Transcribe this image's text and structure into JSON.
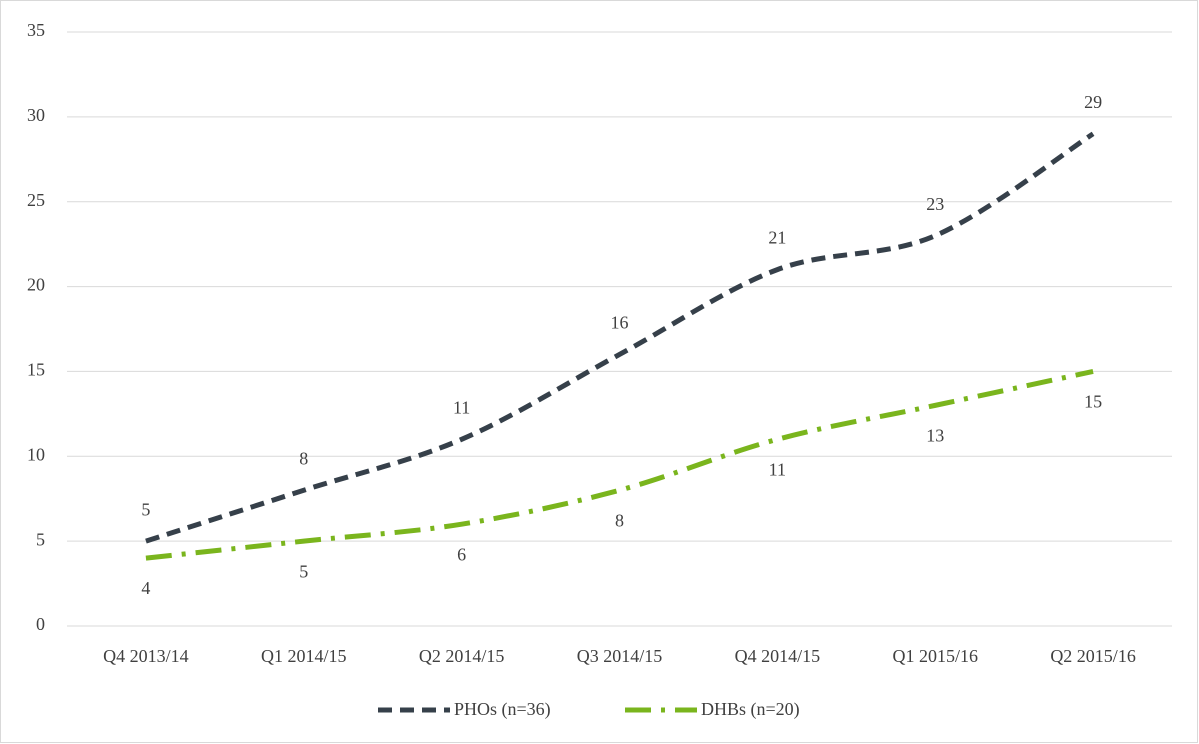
{
  "chart_data": {
    "type": "line",
    "categories": [
      "Q4 2013/14",
      "Q1 2014/15",
      "Q2 2014/15",
      "Q3 2014/15",
      "Q4 2014/15",
      "Q1 2015/16",
      "Q2 2015/16"
    ],
    "series": [
      {
        "name": "PHOs (n=36)",
        "color": "#36404a",
        "values": [
          5,
          8,
          11,
          16,
          21,
          23,
          29
        ]
      },
      {
        "name": "DHBs (n=20)",
        "color": "#7ab51d",
        "values": [
          4,
          5,
          6,
          8,
          11,
          13,
          15
        ]
      }
    ],
    "ylim": [
      0,
      35
    ],
    "yticks": [
      0,
      5,
      10,
      15,
      20,
      25,
      30,
      35
    ],
    "grid": true,
    "legend": "bottom"
  }
}
